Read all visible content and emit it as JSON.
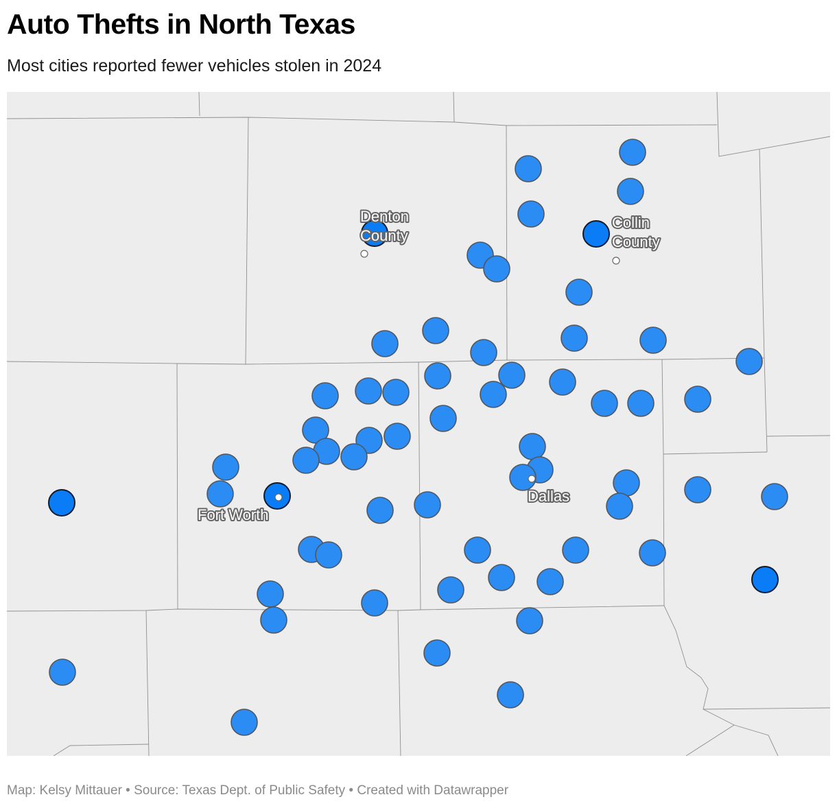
{
  "header": {
    "title": "Auto Thefts in North Texas",
    "subtitle": "Most cities reported fewer vehicles stolen in 2024"
  },
  "footer": {
    "credit": "Map: Kelsy Mittauer • Source: Texas Dept. of Public Safety • Created with Datawrapper"
  },
  "map": {
    "background_color": "#ededed",
    "border_color": "#8f8f8f",
    "marker_color": "#2b8cf3",
    "highlight_marker_color": "#0a7cf5",
    "place_labels": [
      {
        "id": "denton-county",
        "lines": [
          "Denton",
          "County"
        ]
      },
      {
        "id": "collin-county",
        "lines": [
          "Collin",
          "County"
        ]
      },
      {
        "id": "dallas",
        "lines": [
          "Dallas"
        ]
      },
      {
        "id": "fort-worth",
        "lines": [
          "Fort Worth"
        ]
      }
    ]
  }
}
